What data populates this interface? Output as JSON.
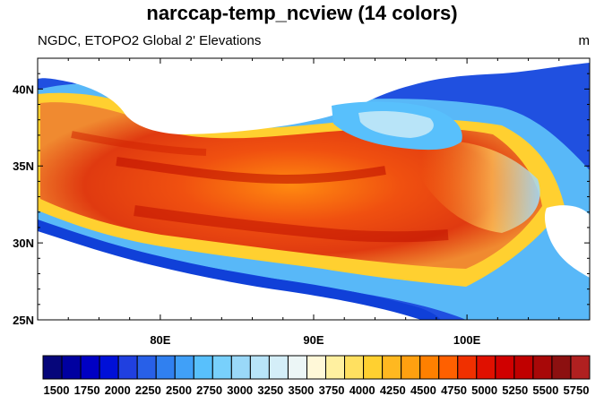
{
  "title": "narccap-temp_ncview (14 colors)",
  "subtitle_left": "NGDC, ETOPO2 Global 2' Elevations",
  "subtitle_right": "m",
  "map": {
    "lon_range": [
      72,
      108
    ],
    "lat_range": [
      25,
      42
    ],
    "x_ticks": [
      "80E",
      "90E",
      "100E"
    ],
    "x_tick_values": [
      80,
      90,
      100
    ],
    "y_ticks": [
      "40N",
      "35N",
      "30N",
      "25N"
    ],
    "y_tick_values": [
      40,
      35,
      30,
      25
    ]
  },
  "colorbar": {
    "labels": [
      "1500",
      "1750",
      "2000",
      "2250",
      "2500",
      "2750",
      "3000",
      "3250",
      "3500",
      "3750",
      "4000",
      "4250",
      "4500",
      "4750",
      "5000",
      "5250",
      "5500",
      "5750"
    ],
    "colors": [
      "#06067a",
      "#0000a0",
      "#0000c4",
      "#0010d8",
      "#2040e0",
      "#2860e8",
      "#3080f0",
      "#40a0f8",
      "#58c0fc",
      "#78d0fc",
      "#9ad8f8",
      "#b8e4f8",
      "#d4eef8",
      "#ecf6f6",
      "#fff8d8",
      "#fff0a0",
      "#ffe060",
      "#ffd030",
      "#ffb820",
      "#ffa010",
      "#ff8000",
      "#ff6000",
      "#f03000",
      "#e01000",
      "#d00000",
      "#c00000",
      "#a80808",
      "#8c1010",
      "#b02020"
    ]
  }
}
